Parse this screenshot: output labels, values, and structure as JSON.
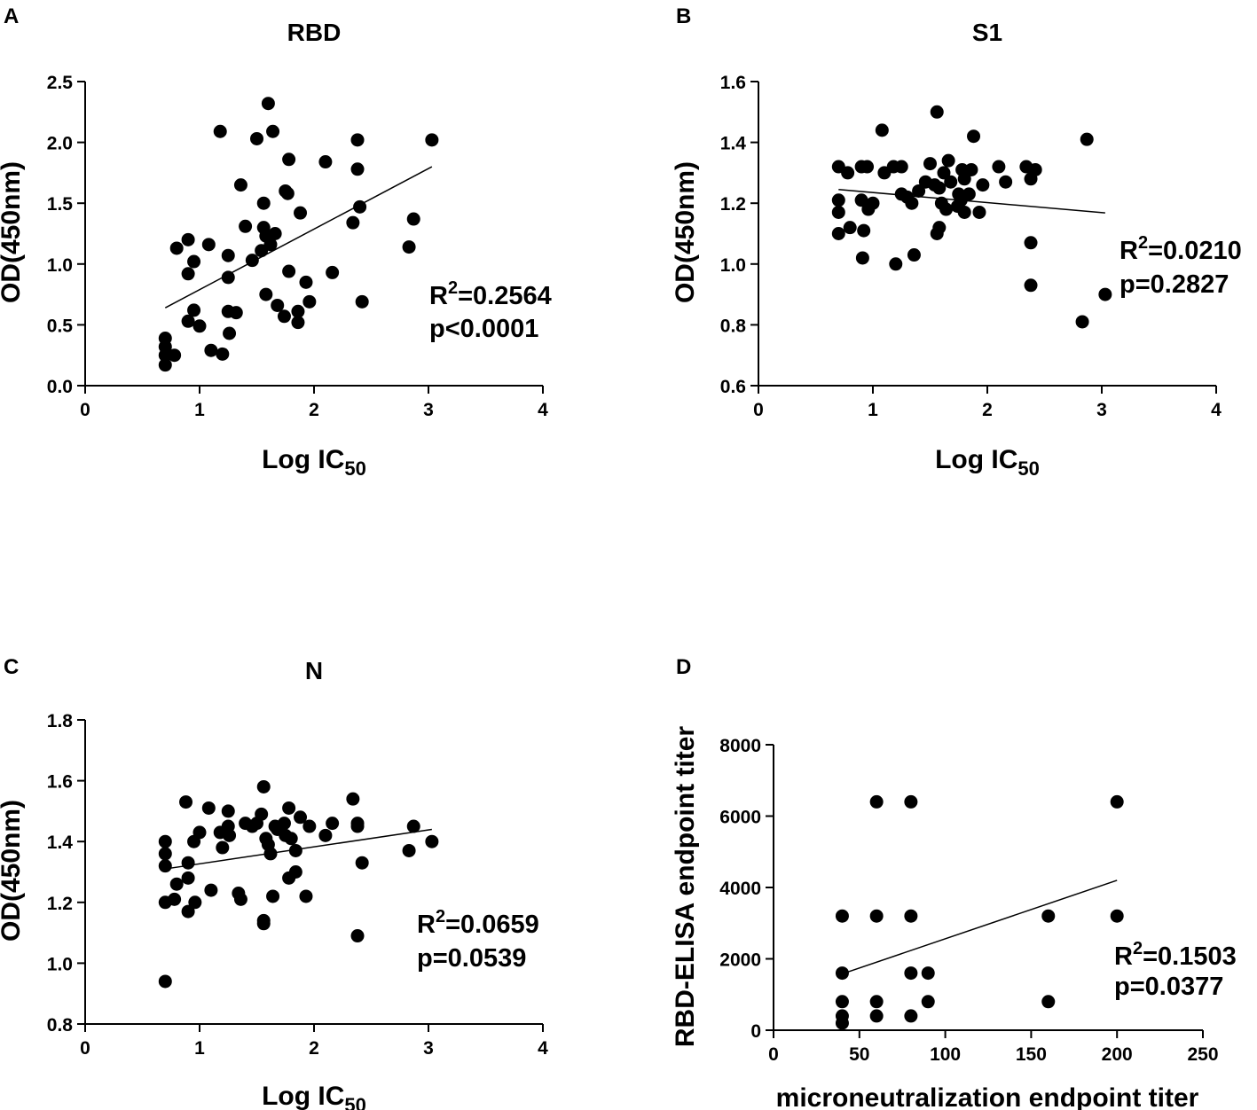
{
  "chart_data": [
    {
      "type": "scatter",
      "panel_label": "A",
      "title": "RBD",
      "xlabel_main": "Log IC",
      "xlabel_sub": "50",
      "ylabel": "OD(450nm)",
      "xlim": [
        0,
        4
      ],
      "ylim": [
        0,
        2.5
      ],
      "xticks": [
        "0",
        "1",
        "2",
        "3",
        "4"
      ],
      "yticks": [
        "0.0",
        "0.5",
        "1.0",
        "1.5",
        "2.0",
        "2.5"
      ],
      "stat_r_prefix": "R",
      "stat_r_sup": "2",
      "stat_r_value": "=0.2564",
      "stat_p": "p<0.0001",
      "fit_line": {
        "x": [
          0.7,
          3.03
        ],
        "y": [
          0.64,
          1.8
        ]
      },
      "points": [
        [
          0.7,
          0.17
        ],
        [
          0.7,
          0.25
        ],
        [
          0.7,
          0.32
        ],
        [
          0.7,
          0.39
        ],
        [
          0.78,
          0.25
        ],
        [
          0.8,
          1.13
        ],
        [
          0.9,
          0.53
        ],
        [
          0.9,
          0.92
        ],
        [
          0.9,
          1.2
        ],
        [
          0.95,
          1.02
        ],
        [
          0.95,
          0.62
        ],
        [
          1.0,
          0.49
        ],
        [
          1.08,
          1.16
        ],
        [
          1.1,
          0.29
        ],
        [
          1.18,
          2.09
        ],
        [
          1.2,
          0.26
        ],
        [
          1.25,
          0.89
        ],
        [
          1.25,
          1.07
        ],
        [
          1.25,
          0.61
        ],
        [
          1.26,
          0.43
        ],
        [
          1.32,
          0.6
        ],
        [
          1.36,
          1.65
        ],
        [
          1.4,
          1.31
        ],
        [
          1.46,
          1.03
        ],
        [
          1.5,
          2.03
        ],
        [
          1.54,
          1.11
        ],
        [
          1.56,
          1.5
        ],
        [
          1.56,
          1.3
        ],
        [
          1.58,
          1.23
        ],
        [
          1.58,
          0.75
        ],
        [
          1.6,
          2.32
        ],
        [
          1.62,
          1.16
        ],
        [
          1.64,
          2.09
        ],
        [
          1.66,
          1.25
        ],
        [
          1.68,
          0.66
        ],
        [
          1.74,
          0.57
        ],
        [
          1.75,
          1.6
        ],
        [
          1.77,
          1.58
        ],
        [
          1.78,
          1.86
        ],
        [
          1.78,
          0.94
        ],
        [
          1.86,
          0.52
        ],
        [
          1.86,
          0.61
        ],
        [
          1.88,
          1.42
        ],
        [
          1.93,
          0.85
        ],
        [
          1.96,
          0.69
        ],
        [
          2.1,
          1.84
        ],
        [
          2.16,
          0.93
        ],
        [
          2.34,
          1.34
        ],
        [
          2.38,
          2.02
        ],
        [
          2.38,
          1.78
        ],
        [
          2.4,
          1.47
        ],
        [
          2.42,
          0.69
        ],
        [
          2.83,
          1.14
        ],
        [
          2.87,
          1.37
        ],
        [
          3.03,
          2.02
        ]
      ]
    },
    {
      "type": "scatter",
      "panel_label": "B",
      "title": "S1",
      "xlabel_main": "Log IC",
      "xlabel_sub": "50",
      "ylabel": "OD(450nm)",
      "xlim": [
        0,
        4
      ],
      "ylim": [
        0.6,
        1.6
      ],
      "xticks": [
        "0",
        "1",
        "2",
        "3",
        "4"
      ],
      "yticks": [
        "0.6",
        "0.8",
        "1.0",
        "1.2",
        "1.4",
        "1.6"
      ],
      "stat_r_prefix": "R",
      "stat_r_sup": "2",
      "stat_r_value": "=0.0210",
      "stat_p": "p=0.2827",
      "fit_line": {
        "x": [
          0.7,
          3.03
        ],
        "y": [
          1.245,
          1.168
        ]
      },
      "points": [
        [
          0.7,
          1.32
        ],
        [
          0.7,
          1.21
        ],
        [
          0.7,
          1.17
        ],
        [
          0.7,
          1.1
        ],
        [
          0.78,
          1.3
        ],
        [
          0.8,
          1.12
        ],
        [
          0.9,
          1.32
        ],
        [
          0.9,
          1.21
        ],
        [
          0.91,
          1.02
        ],
        [
          0.92,
          1.11
        ],
        [
          0.95,
          1.32
        ],
        [
          0.96,
          1.18
        ],
        [
          1.0,
          1.2
        ],
        [
          1.08,
          1.44
        ],
        [
          1.1,
          1.3
        ],
        [
          1.18,
          1.32
        ],
        [
          1.2,
          1.0
        ],
        [
          1.25,
          1.32
        ],
        [
          1.25,
          1.23
        ],
        [
          1.3,
          1.22
        ],
        [
          1.34,
          1.2
        ],
        [
          1.36,
          1.03
        ],
        [
          1.4,
          1.24
        ],
        [
          1.46,
          1.27
        ],
        [
          1.5,
          1.33
        ],
        [
          1.54,
          1.26
        ],
        [
          1.56,
          1.5
        ],
        [
          1.56,
          1.1
        ],
        [
          1.58,
          1.12
        ],
        [
          1.58,
          1.25
        ],
        [
          1.6,
          1.2
        ],
        [
          1.62,
          1.3
        ],
        [
          1.64,
          1.18
        ],
        [
          1.66,
          1.34
        ],
        [
          1.68,
          1.27
        ],
        [
          1.74,
          1.19
        ],
        [
          1.75,
          1.23
        ],
        [
          1.77,
          1.21
        ],
        [
          1.78,
          1.31
        ],
        [
          1.8,
          1.17
        ],
        [
          1.8,
          1.28
        ],
        [
          1.84,
          1.23
        ],
        [
          1.86,
          1.31
        ],
        [
          1.88,
          1.42
        ],
        [
          1.93,
          1.17
        ],
        [
          1.96,
          1.26
        ],
        [
          2.1,
          1.32
        ],
        [
          2.16,
          1.27
        ],
        [
          2.34,
          1.32
        ],
        [
          2.38,
          1.28
        ],
        [
          2.38,
          1.07
        ],
        [
          2.38,
          0.93
        ],
        [
          2.42,
          1.31
        ],
        [
          2.83,
          0.81
        ],
        [
          2.87,
          1.41
        ],
        [
          3.03,
          0.9
        ]
      ]
    },
    {
      "type": "scatter",
      "panel_label": "C",
      "title": "N",
      "xlabel_main": "Log IC",
      "xlabel_sub": "50",
      "ylabel": "OD(450nm)",
      "xlim": [
        0,
        4
      ],
      "ylim": [
        0.8,
        1.8
      ],
      "xticks": [
        "0",
        "1",
        "2",
        "3",
        "4"
      ],
      "yticks": [
        "0.8",
        "1.0",
        "1.2",
        "1.4",
        "1.6",
        "1.8"
      ],
      "stat_r_prefix": "R",
      "stat_r_sup": "2",
      "stat_r_value": "=0.0659",
      "stat_p": "p=0.0539",
      "fit_line": {
        "x": [
          0.7,
          3.03
        ],
        "y": [
          1.31,
          1.44
        ]
      },
      "points": [
        [
          0.7,
          1.4
        ],
        [
          0.7,
          1.36
        ],
        [
          0.7,
          1.32
        ],
        [
          0.7,
          1.2
        ],
        [
          0.7,
          0.94
        ],
        [
          0.78,
          1.21
        ],
        [
          0.8,
          1.26
        ],
        [
          0.88,
          1.53
        ],
        [
          0.9,
          1.33
        ],
        [
          0.9,
          1.28
        ],
        [
          0.9,
          1.17
        ],
        [
          0.95,
          1.4
        ],
        [
          0.96,
          1.2
        ],
        [
          1.0,
          1.43
        ],
        [
          1.08,
          1.51
        ],
        [
          1.1,
          1.24
        ],
        [
          1.18,
          1.43
        ],
        [
          1.2,
          1.38
        ],
        [
          1.25,
          1.5
        ],
        [
          1.25,
          1.45
        ],
        [
          1.26,
          1.42
        ],
        [
          1.34,
          1.23
        ],
        [
          1.36,
          1.21
        ],
        [
          1.4,
          1.46
        ],
        [
          1.46,
          1.45
        ],
        [
          1.5,
          1.46
        ],
        [
          1.54,
          1.49
        ],
        [
          1.56,
          1.58
        ],
        [
          1.56,
          1.14
        ],
        [
          1.56,
          1.13
        ],
        [
          1.58,
          1.41
        ],
        [
          1.6,
          1.39
        ],
        [
          1.62,
          1.36
        ],
        [
          1.64,
          1.22
        ],
        [
          1.66,
          1.45
        ],
        [
          1.68,
          1.44
        ],
        [
          1.74,
          1.46
        ],
        [
          1.75,
          1.42
        ],
        [
          1.78,
          1.51
        ],
        [
          1.78,
          1.28
        ],
        [
          1.8,
          1.41
        ],
        [
          1.84,
          1.37
        ],
        [
          1.84,
          1.3
        ],
        [
          1.88,
          1.48
        ],
        [
          1.93,
          1.22
        ],
        [
          1.96,
          1.45
        ],
        [
          2.1,
          1.42
        ],
        [
          2.16,
          1.46
        ],
        [
          2.34,
          1.54
        ],
        [
          2.38,
          1.46
        ],
        [
          2.38,
          1.45
        ],
        [
          2.38,
          1.09
        ],
        [
          2.42,
          1.33
        ],
        [
          2.83,
          1.37
        ],
        [
          2.87,
          1.45
        ],
        [
          3.03,
          1.4
        ]
      ]
    },
    {
      "type": "scatter",
      "panel_label": "D",
      "title": "",
      "xlabel_main": "microneutralization endpoint titer",
      "xlabel_sub": "",
      "ylabel": "RBD-ELISA endpoint titer",
      "xlim": [
        0,
        250
      ],
      "ylim": [
        0,
        8000
      ],
      "xticks": [
        "0",
        "50",
        "100",
        "150",
        "200",
        "250"
      ],
      "yticks": [
        "0",
        "2000",
        "4000",
        "6000",
        "8000"
      ],
      "stat_r_prefix": "R",
      "stat_r_sup": "2",
      "stat_r_value": "=0.1503",
      "stat_p": "p=0.0377",
      "fit_line": {
        "x": [
          40,
          200
        ],
        "y": [
          1580,
          4200
        ]
      },
      "points": [
        [
          40,
          3200
        ],
        [
          40,
          1600
        ],
        [
          40,
          800
        ],
        [
          40,
          400
        ],
        [
          40,
          200
        ],
        [
          60,
          6400
        ],
        [
          60,
          3200
        ],
        [
          60,
          800
        ],
        [
          60,
          400
        ],
        [
          80,
          6400
        ],
        [
          80,
          3200
        ],
        [
          80,
          1600
        ],
        [
          80,
          400
        ],
        [
          90,
          1600
        ],
        [
          90,
          800
        ],
        [
          160,
          3200
        ],
        [
          160,
          800
        ],
        [
          200,
          6400
        ],
        [
          200,
          3200
        ]
      ]
    }
  ]
}
